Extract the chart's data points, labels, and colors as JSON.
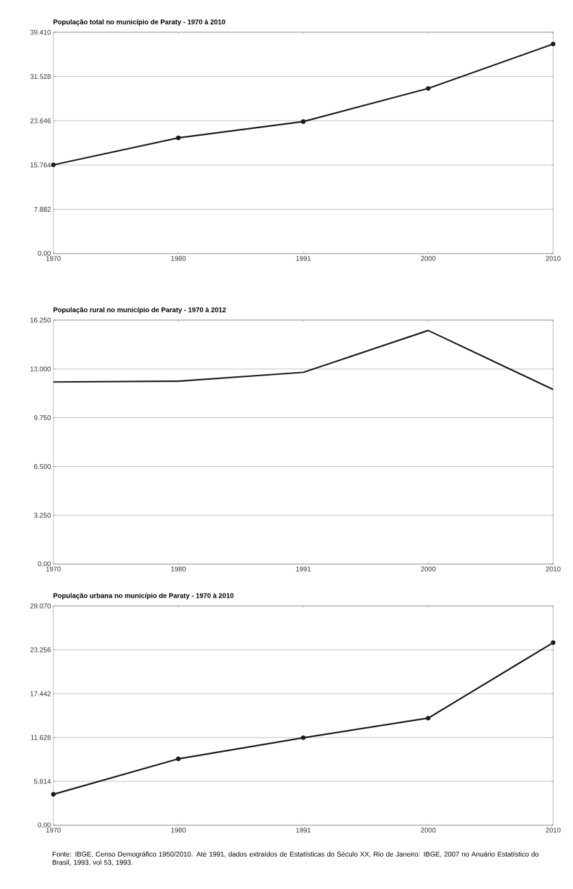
{
  "chart_data": [
    {
      "type": "line",
      "title": "População total no município de Paraty - 1970 à 2010",
      "categories": [
        "1970",
        "1980",
        "1991",
        "2000",
        "2010"
      ],
      "series": [
        {
          "color": "#1a1a1a",
          "values": [
            15800,
            20600,
            23500,
            29400,
            37300
          ]
        }
      ],
      "ylim": [
        0,
        39410
      ],
      "yticks": [
        {
          "value": 0,
          "label": "0,00"
        },
        {
          "value": 7882,
          "label": "7.882"
        },
        {
          "value": 15764,
          "label": "15.764"
        },
        {
          "value": 23646,
          "label": "23.646"
        },
        {
          "value": 31528,
          "label": "31.528"
        },
        {
          "value": 39410,
          "label": "39.410"
        }
      ],
      "grid": "y",
      "marker": "circle",
      "line_style": "solid"
    },
    {
      "type": "line",
      "title": "População rural no município de Paraty - 1970 à 2012",
      "categories": [
        "1970",
        "1980",
        "1991",
        "2000",
        "2010"
      ],
      "series": [
        {
          "color": "#1a1a1a",
          "values": [
            12130,
            12180,
            12770,
            15560,
            11630
          ]
        }
      ],
      "ylim": [
        0,
        16250
      ],
      "yticks": [
        {
          "value": 0,
          "label": "0,00"
        },
        {
          "value": 3250,
          "label": "3.250"
        },
        {
          "value": 6500,
          "label": "6.500"
        },
        {
          "value": 9750,
          "label": "9.750"
        },
        {
          "value": 13000,
          "label": "13.000"
        },
        {
          "value": 16250,
          "label": "16.250"
        }
      ],
      "grid": "y",
      "marker": "none",
      "line_style": "solid"
    },
    {
      "type": "line",
      "title": "População urbana no município de Paraty - 1970 à 2010",
      "categories": [
        "1970",
        "1980",
        "1991",
        "2000",
        "2010"
      ],
      "series": [
        {
          "color": "#1a1a1a",
          "values": [
            4100,
            8800,
            11600,
            14200,
            24200
          ]
        }
      ],
      "ylim": [
        0,
        29070
      ],
      "yticks": [
        {
          "value": 0,
          "label": "0,00"
        },
        {
          "value": 5814,
          "label": "5.814"
        },
        {
          "value": 11628,
          "label": "11.628"
        },
        {
          "value": 17442,
          "label": "17.442"
        },
        {
          "value": 23256,
          "label": "23.256"
        },
        {
          "value": 29070,
          "label": "29.070"
        }
      ],
      "grid": "y",
      "marker": "circle",
      "line_style": "solid",
      "annotations": [
        "Fonte: IBGE, Censo Demográfico 1950/2010. Até 1991, dados extraídos de Estatísticas do Século XX, Rio de Janeiro: IBGE, 2007 no Anuário Estatístico do Brasil, 1993, vol 53, 1993."
      ]
    }
  ]
}
